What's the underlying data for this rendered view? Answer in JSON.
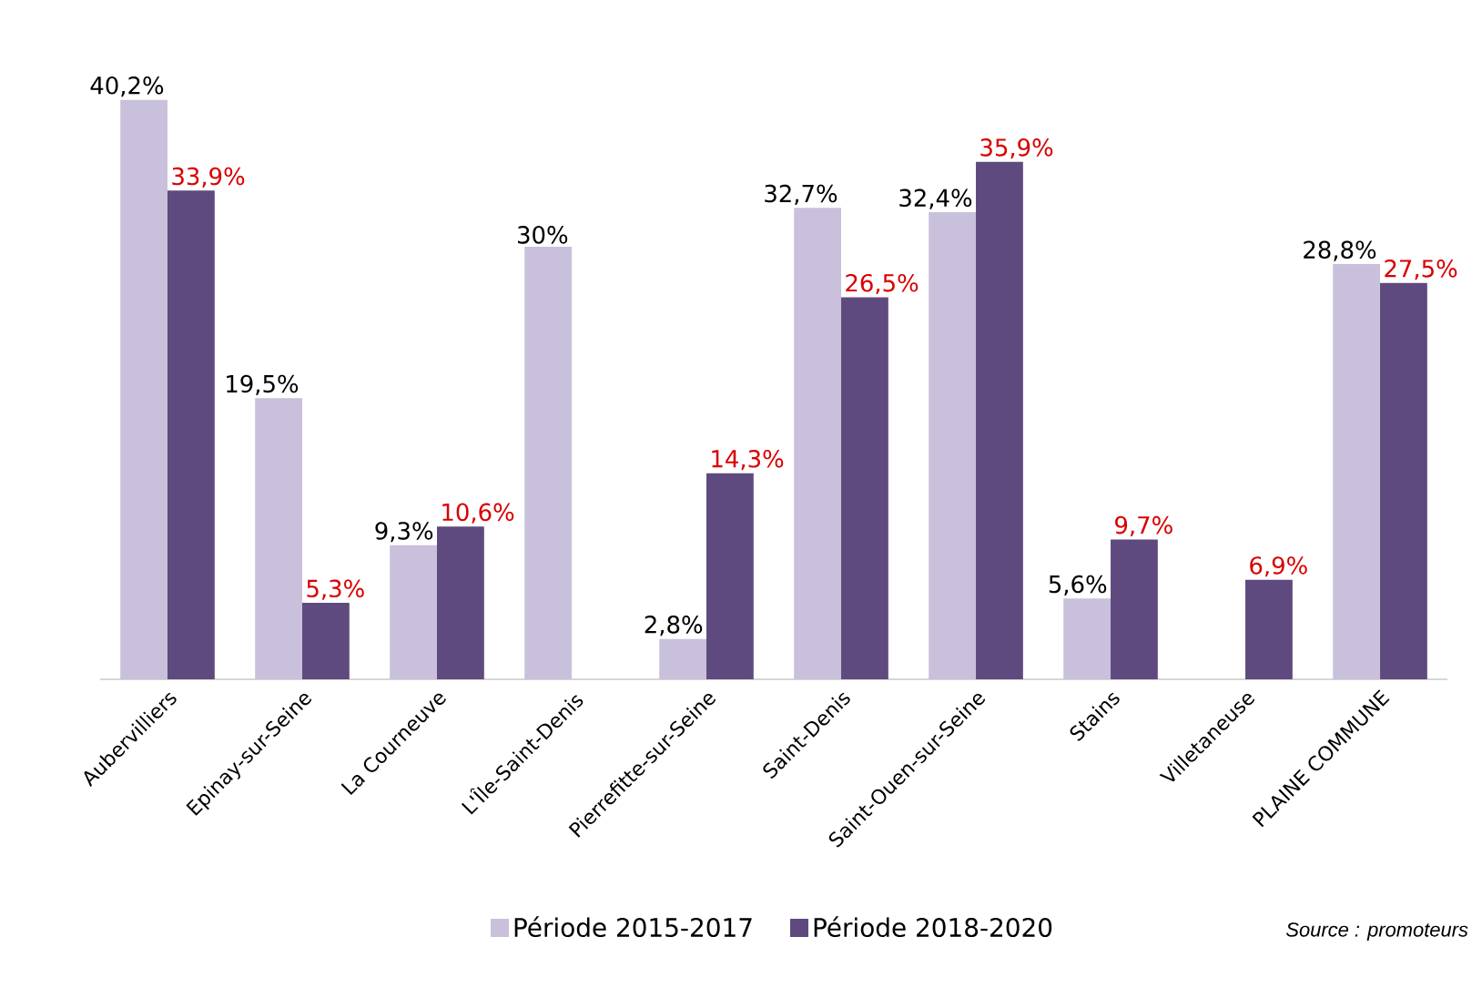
{
  "chart_data": {
    "type": "bar",
    "categories": [
      "Aubervilliers",
      "Epinay-sur-Seine",
      "La Courneuve",
      "L'Île-Saint-Denis",
      "Pierrefitte-sur-Seine",
      "Saint-Denis",
      "Saint-Ouen-sur-Seine",
      "Stains",
      "Villetaneuse",
      "PLAINE COMMUNE"
    ],
    "series": [
      {
        "name": "Période 2015-2017",
        "color": "#c9c0db",
        "values": [
          40.2,
          19.5,
          9.3,
          30,
          2.8,
          32.7,
          32.4,
          5.6,
          null,
          28.8
        ],
        "value_labels": [
          "40,2%",
          "19,5%",
          "9,3%",
          "30%",
          "2,8%",
          "32,7%",
          "32,4%",
          "5,6%",
          null,
          "28,8%"
        ]
      },
      {
        "name": "Période 2018-2020",
        "color": "#5e4a7e",
        "values": [
          33.9,
          5.3,
          10.6,
          null,
          14.3,
          26.5,
          35.9,
          9.7,
          6.9,
          27.5
        ],
        "value_labels": [
          "33,9%",
          "5,3%",
          "10,6%",
          null,
          "14,3%",
          "26,5%",
          "35,9%",
          "9,7%",
          "6,9%",
          "27,5%"
        ]
      }
    ],
    "legend": "bottom",
    "annotations": [
      "Source : promoteurs"
    ]
  }
}
